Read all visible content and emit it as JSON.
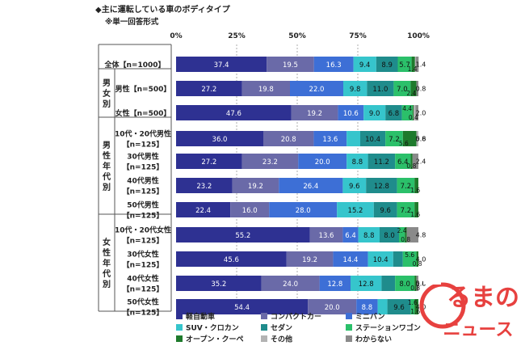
{
  "title": "◆主に運転している車のボディタイプ",
  "subtitle": "※単一回答形式",
  "watermark": {
    "line1": "るまの",
    "line2": "ニュース"
  },
  "chart_data": {
    "type": "bar",
    "stacked": true,
    "orientation": "horizontal",
    "xlim": [
      0,
      100
    ],
    "x_ticks": [
      "0%",
      "25%",
      "50%",
      "75%",
      "100%"
    ],
    "groups": [
      {
        "label": "",
        "rows": [
          0
        ]
      },
      {
        "label": "男女別",
        "rows": [
          1,
          2
        ]
      },
      {
        "label": "男性年代別",
        "rows": [
          3,
          4,
          5,
          6
        ]
      },
      {
        "label": "女性年代別",
        "rows": [
          7,
          8,
          9,
          10
        ]
      }
    ],
    "categories": [
      [
        "全体【n=1000】"
      ],
      [
        "男性【n=500】"
      ],
      [
        "女性【n=500】"
      ],
      [
        "10代・20代男性",
        "【n=125】"
      ],
      [
        "30代男性",
        "【n=125】"
      ],
      [
        "40代男性",
        "【n=125】"
      ],
      [
        "50代男性",
        "【n=125】"
      ],
      [
        "10代・20代女性",
        "【n=125】"
      ],
      [
        "30代女性",
        "【n=125】"
      ],
      [
        "40代女性",
        "【n=125】"
      ],
      [
        "50代女性",
        "【n=125】"
      ]
    ],
    "series": [
      {
        "name": "軽自動車",
        "color": "#2e3192",
        "values": [
          37.4,
          27.2,
          47.6,
          36.0,
          27.2,
          23.2,
          22.4,
          55.2,
          45.6,
          35.2,
          54.4
        ]
      },
      {
        "name": "コンパクトカー",
        "color": "#6a6aa8",
        "values": [
          19.5,
          19.8,
          19.2,
          20.8,
          23.2,
          19.2,
          16.0,
          13.6,
          19.2,
          24.0,
          20.0
        ]
      },
      {
        "name": "ミニバン",
        "color": "#3d6fd6",
        "values": [
          16.3,
          22.0,
          10.6,
          13.6,
          20.0,
          26.4,
          28.0,
          6.4,
          14.4,
          12.8,
          8.8
        ]
      },
      {
        "name": "SUV・クロカン",
        "color": "#36c5cc",
        "values": [
          9.4,
          9.8,
          9.0,
          5.6,
          8.8,
          9.6,
          15.2,
          8.8,
          10.4,
          12.8,
          4.0
        ]
      },
      {
        "name": "セダン",
        "color": "#1f8c8c",
        "values": [
          8.9,
          11.0,
          6.8,
          10.4,
          11.2,
          12.8,
          9.6,
          8.0,
          4.0,
          5.6,
          9.6
        ]
      },
      {
        "name": "ステーションワゴン",
        "color": "#2bc06a",
        "values": [
          5.7,
          7.0,
          4.4,
          7.2,
          6.4,
          7.2,
          7.2,
          2.4,
          5.6,
          8.0,
          1.6
        ]
      },
      {
        "name": "オープン・クーペ",
        "color": "#1e7a2c",
        "values": [
          1.4,
          2.4,
          0.4,
          5.6,
          0.8,
          1.6,
          1.6,
          0.8,
          0.8,
          0.8,
          1.6
        ]
      },
      {
        "name": "その他",
        "color": "#b3b3b3",
        "values": [
          0.4,
          0.0,
          0.8,
          0.8,
          0.0,
          0.0,
          0.0,
          0.0,
          0.0,
          0.0,
          0.0
        ]
      },
      {
        "name": "わからない",
        "color": "#8a8a8a",
        "values": [
          1.1,
          0.8,
          1.2,
          0.0,
          2.4,
          0.0,
          0.0,
          4.8,
          0.0,
          0.8,
          0.0
        ]
      }
    ],
    "data_labels": [
      [
        "37.4",
        "19.5",
        "16.3",
        "9.4",
        "8.9",
        "5.7",
        "1.4",
        "",
        "1.4"
      ],
      [
        "27.2",
        "19.8",
        "22.0",
        "9.8",
        "11.0",
        "7.0",
        "2.4",
        "",
        "0.8"
      ],
      [
        "47.6",
        "19.2",
        "10.6",
        "9.0",
        "6.8",
        "4.4",
        "0.4",
        "",
        "2.0"
      ],
      [
        "36.0",
        "20.8",
        "13.6",
        "5.6",
        "10.4",
        "7.2",
        "5.6",
        "",
        "0.8"
      ],
      [
        "27.2",
        "23.2",
        "20.0",
        "8.8",
        "11.2",
        "6.4",
        "0.8",
        "",
        "2.4"
      ],
      [
        "23.2",
        "19.2",
        "26.4",
        "9.6",
        "12.8",
        "7.2",
        "1.6",
        "",
        ""
      ],
      [
        "22.4",
        "16.0",
        "28.0",
        "15.2",
        "9.6",
        "7.2",
        "1.6",
        "",
        ""
      ],
      [
        "55.2",
        "13.6",
        "6.4",
        "8.8",
        "8.0",
        "2.4",
        "0.8",
        "",
        "4.8"
      ],
      [
        "45.6",
        "19.2",
        "14.4",
        "10.4",
        "4.0",
        "5.6",
        "0.8",
        "",
        ""
      ],
      [
        "35.2",
        "24.0",
        "12.8",
        "12.8",
        "5.6",
        "8.0",
        "0.8",
        "",
        "0.8"
      ],
      [
        "54.4",
        "20.0",
        "8.8",
        "4.0",
        "9.6",
        "1.6",
        "1.6",
        "",
        ""
      ]
    ],
    "legend_position": "bottom"
  }
}
